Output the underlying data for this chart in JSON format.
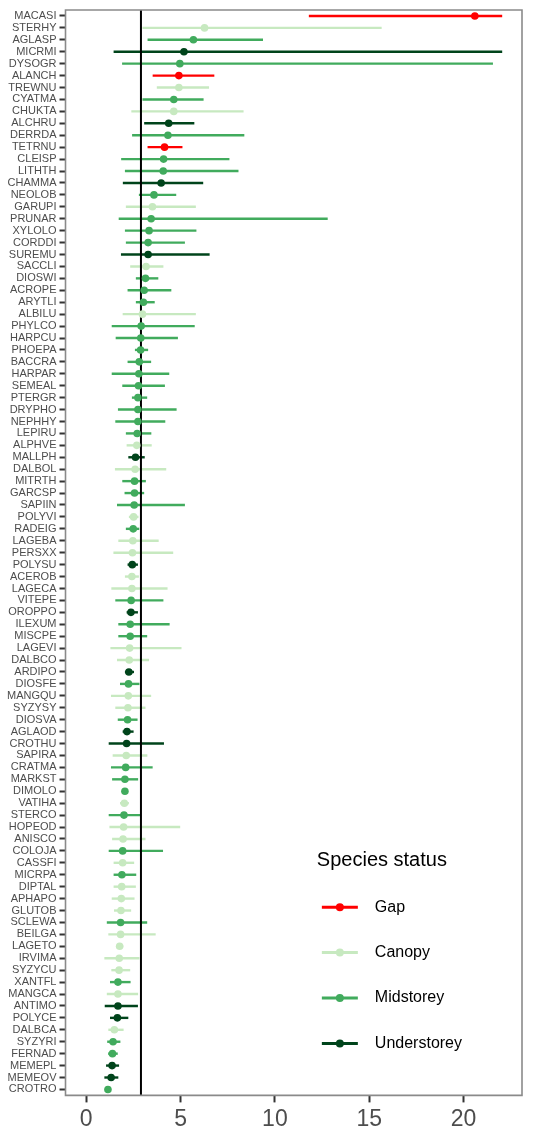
{
  "chart_data": {
    "type": "scatter",
    "orientation": "horizontal",
    "categories": [
      "MACASI",
      "STERHY",
      "AGLASP",
      "MICRMI",
      "DYSOGR",
      "ALANCH",
      "TREWNU",
      "CYATMA",
      "CHUKTA",
      "ALCHRU",
      "DERRDA",
      "TETRNU",
      "CLEISP",
      "LITHTH",
      "CHAMMA",
      "NEOLOB",
      "GARUPI",
      "PRUNAR",
      "XYLOLO",
      "CORDDI",
      "SUREMU",
      "SACCLI",
      "DIOSWI",
      "ACROPE",
      "ARYTLI",
      "ALBILU",
      "PHYLCO",
      "HARPCU",
      "PHOEPA",
      "BACCRA",
      "HARPAR",
      "SEMEAL",
      "PTERGR",
      "DRYPHO",
      "NEPHHY",
      "LEPIRU",
      "ALPHVE",
      "MALLPH",
      "DALBOL",
      "MITRTH",
      "GARCSP",
      "SAPIIN",
      "POLYVI",
      "RADEIG",
      "LAGEBA",
      "PERSXX",
      "POLYSU",
      "ACEROB",
      "LAGECA",
      "VITEPE",
      "OROPPO",
      "ILEXUM",
      "MISCPE",
      "LAGEVI",
      "DALBCO",
      "ARDIPO",
      "DIOSFE",
      "MANGQU",
      "SYZYSY",
      "DIOSVA",
      "AGLAOD",
      "CROTHU",
      "SAPIRA",
      "CRATMA",
      "MARKST",
      "DIMOLO",
      "VATIHA",
      "STERCO",
      "HOPEOD",
      "ANISCO",
      "COLOJA",
      "CASSFI",
      "MICRPA",
      "DIPTAL",
      "APHAPO",
      "GLUTOB",
      "SCLEWA",
      "BEILGA",
      "LAGETO",
      "IRVIMA",
      "SYZYCU",
      "XANTFL",
      "MANGCA",
      "ANTIMO",
      "POLYCE",
      "DALBCA",
      "SYZYRI",
      "FERNAD",
      "MEMEPL",
      "MEMEOV",
      "CROTRO"
    ],
    "series": [
      {
        "name": "Gap",
        "color": "#ff0000",
        "values": [
          20.6,
          null,
          null,
          null,
          null,
          4.91,
          null,
          null,
          null,
          null,
          null,
          4.15,
          null,
          null,
          null,
          null,
          null,
          null,
          null,
          null,
          null,
          null,
          null,
          null,
          null,
          null,
          null,
          null,
          null,
          null,
          null,
          null,
          null,
          null,
          null,
          null,
          null,
          null,
          null,
          null,
          null,
          null,
          null,
          null,
          null,
          null,
          null,
          null,
          null,
          null,
          null,
          null,
          null,
          null,
          null,
          null,
          null,
          null,
          null,
          null,
          null,
          null,
          null,
          null,
          null,
          null,
          null,
          null,
          null,
          null,
          null,
          null,
          null,
          null,
          null,
          null,
          null,
          null,
          null,
          null,
          null,
          null,
          null,
          null,
          null,
          null,
          null,
          null,
          null,
          null,
          null
        ],
        "errors": [
          [
            11.8,
            22.05
          ],
          null,
          null,
          null,
          null,
          [
            3.52,
            6.79
          ],
          null,
          null,
          null,
          null,
          null,
          [
            3.25,
            5.1
          ],
          null,
          null,
          null,
          null,
          null,
          null,
          null,
          null,
          null,
          null,
          null,
          null,
          null,
          null,
          null,
          null,
          null,
          null,
          null,
          null,
          null,
          null,
          null,
          null,
          null,
          null,
          null,
          null,
          null,
          null,
          null,
          null,
          null,
          null,
          null,
          null,
          null,
          null,
          null,
          null,
          null,
          null,
          null,
          null,
          null,
          null,
          null,
          null,
          null,
          null,
          null,
          null,
          null,
          null,
          null,
          null,
          null,
          null,
          null,
          null,
          null,
          null,
          null,
          null,
          null,
          null,
          null,
          null,
          null,
          null,
          null,
          null,
          null,
          null,
          null,
          null,
          null,
          null,
          null
        ]
      },
      {
        "name": "Canopy",
        "color": "#c7e9c0",
        "values": [
          null,
          6.27,
          null,
          null,
          null,
          null,
          4.91,
          null,
          4.64,
          null,
          null,
          null,
          null,
          null,
          null,
          null,
          3.51,
          null,
          null,
          null,
          null,
          3.17,
          null,
          null,
          null,
          2.98,
          null,
          null,
          null,
          null,
          null,
          null,
          null,
          null,
          null,
          null,
          2.68,
          null,
          2.59,
          null,
          null,
          null,
          2.51,
          null,
          2.47,
          2.45,
          null,
          2.42,
          2.42,
          null,
          null,
          null,
          null,
          2.3,
          2.28,
          null,
          null,
          2.23,
          2.21,
          null,
          null,
          null,
          2.12,
          null,
          null,
          null,
          2.02,
          null,
          1.98,
          1.95,
          null,
          1.93,
          null,
          1.88,
          1.86,
          1.84,
          null,
          1.82,
          1.77,
          1.75,
          1.74,
          null,
          1.68,
          null,
          null,
          1.49,
          null,
          null,
          null,
          null,
          null
        ],
        "errors": [
          null,
          [
            2.98,
            15.66
          ],
          null,
          null,
          null,
          null,
          [
            3.74,
            6.51
          ],
          null,
          [
            2.39,
            8.34
          ],
          null,
          null,
          null,
          null,
          null,
          null,
          null,
          [
            2.1,
            5.81
          ],
          null,
          null,
          null,
          null,
          [
            2.33,
            4.09
          ],
          null,
          null,
          null,
          [
            1.93,
            5.81
          ],
          null,
          null,
          null,
          null,
          null,
          null,
          null,
          null,
          null,
          null,
          [
            2.14,
            3.47
          ],
          null,
          [
            1.52,
            4.24
          ],
          null,
          null,
          null,
          [
            2.26,
            2.77
          ],
          null,
          [
            1.7,
            3.84
          ],
          [
            1.44,
            4.61
          ],
          null,
          [
            2.05,
            2.79
          ],
          [
            1.33,
            4.31
          ],
          null,
          null,
          null,
          null,
          [
            1.28,
            5.05
          ],
          [
            1.63,
            3.33
          ],
          null,
          null,
          [
            1.31,
            3.44
          ],
          [
            1.54,
            3.14
          ],
          null,
          null,
          null,
          [
            1.4,
            3.24
          ],
          null,
          null,
          null,
          [
            1.79,
            2.26
          ],
          null,
          [
            1.23,
            4.98
          ],
          [
            1.37,
            3.14
          ],
          null,
          [
            1.45,
            2.54
          ],
          null,
          [
            1.45,
            2.63
          ],
          [
            1.35,
            2.56
          ],
          [
            1.47,
            2.38
          ],
          null,
          [
            1.17,
            3.68
          ],
          [
            1.61,
            1.96
          ],
          [
            0.96,
            2.82
          ],
          [
            1.33,
            2.33
          ],
          null,
          [
            1.09,
            2.75
          ],
          null,
          null,
          [
            1.17,
            1.98
          ],
          null,
          null,
          null,
          null,
          null
        ]
      },
      {
        "name": "Midstorey",
        "color": "#41ab5d",
        "values": [
          null,
          null,
          5.68,
          null,
          4.96,
          null,
          null,
          4.64,
          null,
          null,
          4.33,
          null,
          4.1,
          4.08,
          null,
          3.59,
          null,
          3.44,
          3.33,
          3.28,
          null,
          null,
          3.14,
          3.07,
          3.03,
          null,
          2.91,
          2.89,
          2.88,
          2.81,
          2.79,
          2.77,
          2.74,
          2.74,
          2.74,
          2.7,
          null,
          null,
          null,
          2.56,
          2.56,
          2.54,
          null,
          2.49,
          null,
          null,
          null,
          null,
          null,
          2.38,
          null,
          2.33,
          2.33,
          null,
          null,
          null,
          2.24,
          null,
          null,
          2.19,
          null,
          null,
          null,
          2.09,
          2.05,
          2.05,
          null,
          2.0,
          null,
          null,
          1.93,
          null,
          1.89,
          null,
          null,
          null,
          1.82,
          null,
          null,
          null,
          null,
          1.68,
          null,
          null,
          null,
          null,
          1.42,
          1.39,
          null,
          null,
          1.15
        ],
        "errors": [
          null,
          null,
          [
            3.25,
            9.37
          ],
          null,
          [
            1.9,
            21.56
          ],
          null,
          null,
          [
            2.98,
            6.22
          ],
          null,
          null,
          [
            2.43,
            8.38
          ],
          null,
          [
            1.85,
            7.59
          ],
          [
            2.05,
            8.07
          ],
          null,
          [
            2.79,
            4.77
          ],
          null,
          [
            1.72,
            12.8
          ],
          [
            2.05,
            5.84
          ],
          [
            2.1,
            5.23
          ],
          null,
          null,
          [
            2.63,
            3.82
          ],
          [
            2.19,
            4.51
          ],
          [
            2.63,
            3.63
          ],
          null,
          [
            1.35,
            5.75
          ],
          [
            1.56,
            4.86
          ],
          [
            2.58,
            3.28
          ],
          [
            2.19,
            3.44
          ],
          [
            1.35,
            4.4
          ],
          [
            1.91,
            4.17
          ],
          [
            2.42,
            3.23
          ],
          [
            1.68,
            4.79
          ],
          [
            1.54,
            4.19
          ],
          [
            2.1,
            3.45
          ],
          null,
          null,
          null,
          [
            1.91,
            3.16
          ],
          [
            2.03,
            3.07
          ],
          [
            1.63,
            5.23
          ],
          null,
          [
            2.1,
            2.81
          ],
          null,
          null,
          null,
          null,
          null,
          [
            1.54,
            4.09
          ],
          null,
          [
            1.7,
            4.42
          ],
          [
            1.7,
            3.23
          ],
          null,
          null,
          null,
          [
            1.79,
            2.82
          ],
          null,
          null,
          [
            1.67,
            2.72
          ],
          null,
          null,
          null,
          [
            1.31,
            3.52
          ],
          [
            1.37,
            2.75
          ],
          null,
          null,
          [
            1.19,
            2.86
          ],
          null,
          null,
          [
            1.19,
            4.07
          ],
          null,
          [
            1.45,
            2.65
          ],
          null,
          null,
          null,
          [
            1.09,
            3.23
          ],
          null,
          null,
          null,
          null,
          [
            1.26,
            2.35
          ],
          null,
          null,
          null,
          null,
          [
            1.11,
            1.81
          ],
          [
            1.16,
            1.67
          ],
          null,
          null,
          null
        ]
      },
      {
        "name": "Understorey",
        "color": "#00441b",
        "values": [
          null,
          null,
          null,
          5.18,
          null,
          null,
          null,
          null,
          null,
          4.37,
          null,
          null,
          null,
          null,
          3.97,
          null,
          null,
          null,
          null,
          null,
          3.28,
          null,
          null,
          null,
          null,
          null,
          null,
          null,
          null,
          null,
          null,
          null,
          null,
          null,
          null,
          null,
          null,
          2.61,
          null,
          null,
          null,
          null,
          null,
          null,
          null,
          null,
          2.44,
          null,
          null,
          null,
          2.37,
          null,
          null,
          null,
          null,
          2.26,
          null,
          null,
          null,
          null,
          2.16,
          2.14,
          null,
          null,
          null,
          null,
          null,
          null,
          null,
          null,
          null,
          null,
          null,
          null,
          null,
          null,
          null,
          null,
          null,
          null,
          null,
          null,
          null,
          1.68,
          1.65,
          null,
          null,
          null,
          1.37,
          1.32,
          null
        ],
        "errors": [
          null,
          null,
          null,
          [
            1.45,
            22.05
          ],
          null,
          null,
          null,
          null,
          null,
          [
            3.07,
            5.73
          ],
          null,
          null,
          null,
          null,
          [
            1.94,
            6.2
          ],
          null,
          null,
          null,
          null,
          null,
          [
            1.84,
            6.54
          ],
          null,
          null,
          null,
          null,
          null,
          null,
          null,
          null,
          null,
          null,
          null,
          null,
          null,
          null,
          null,
          null,
          [
            2.23,
            3.1
          ],
          null,
          null,
          null,
          null,
          null,
          null,
          null,
          null,
          [
            2.19,
            2.74
          ],
          null,
          null,
          null,
          [
            2.14,
            2.74
          ],
          null,
          null,
          null,
          null,
          [
            2.05,
            2.53
          ],
          null,
          null,
          null,
          null,
          [
            1.93,
            2.51
          ],
          [
            1.19,
            4.12
          ],
          null,
          null,
          null,
          null,
          null,
          null,
          null,
          null,
          null,
          null,
          null,
          null,
          null,
          null,
          null,
          null,
          null,
          null,
          null,
          null,
          null,
          [
            0.98,
            2.74
          ],
          [
            1.26,
            2.23
          ],
          null,
          null,
          null,
          [
            1.05,
            1.74
          ],
          [
            0.96,
            1.7
          ],
          null
        ]
      }
    ],
    "xlim": [
      -1.1,
      23.1
    ],
    "xticks": [
      0,
      5,
      10,
      15,
      20
    ],
    "ref_lines": [
      {
        "axis": "x",
        "value": 2.9,
        "color": "#000000"
      }
    ],
    "legend": "bottom right",
    "legend_title": "Species status",
    "marker": "circle"
  }
}
